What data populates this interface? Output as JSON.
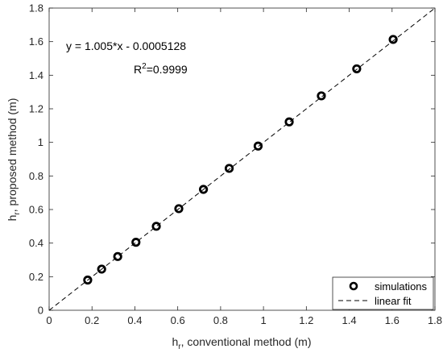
{
  "chart_data": {
    "type": "scatter",
    "xlabel": {
      "main": "h",
      "sub": "r",
      "rest": ", conventional method (m)"
    },
    "ylabel": {
      "main": "h",
      "sub": "r",
      "rest": ", proposed method (m)"
    },
    "xlim": [
      0,
      1.8
    ],
    "ylim": [
      0,
      1.8
    ],
    "xticks": [
      0,
      0.2,
      0.4,
      0.6,
      0.8,
      1,
      1.2,
      1.4,
      1.6,
      1.8
    ],
    "yticks": [
      0,
      0.2,
      0.4,
      0.6,
      0.8,
      1,
      1.2,
      1.4,
      1.6,
      1.8
    ],
    "xtick_labels": [
      "0",
      "0.2",
      "0.4",
      "0.6",
      "0.8",
      "1",
      "1.2",
      "1.4",
      "1.6",
      "1.8"
    ],
    "ytick_labels": [
      "0",
      "0.2",
      "0.4",
      "0.6",
      "0.8",
      "1",
      "1.2",
      "1.4",
      "1.6",
      "1.8"
    ],
    "grid": false,
    "series": [
      {
        "name": "simulations",
        "kind": "marker",
        "x": [
          0.18,
          0.245,
          0.32,
          0.405,
          0.5,
          0.605,
          0.72,
          0.84,
          0.975,
          1.12,
          1.27,
          1.435,
          1.605
        ],
        "y": [
          0.18,
          0.245,
          0.32,
          0.405,
          0.5,
          0.605,
          0.72,
          0.845,
          0.978,
          1.122,
          1.277,
          1.438,
          1.613
        ]
      },
      {
        "name": "linear fit",
        "kind": "dashed-line",
        "slope": 1.005,
        "intercept": -0.0005128
      }
    ],
    "annotations": {
      "equation": "y = 1.005*x - 0.0005128",
      "r2_prefix": "R",
      "r2_sup": "2",
      "r2_value": "=0.9999"
    },
    "legend": {
      "position": "bottom-right",
      "entries": [
        "simulations",
        "linear fit"
      ]
    }
  }
}
